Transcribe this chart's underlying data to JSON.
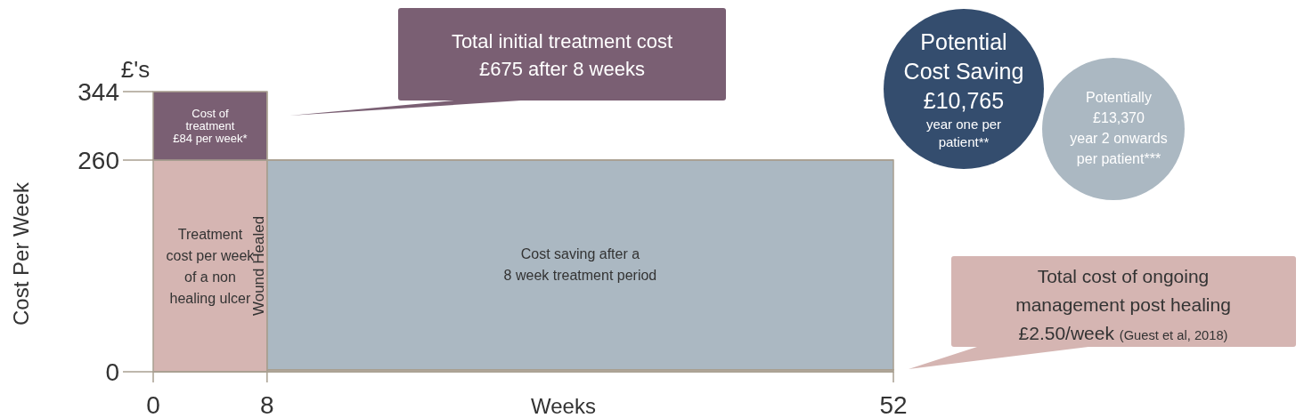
{
  "chart_data": {
    "type": "area",
    "stacked": true,
    "x": [
      0,
      8,
      52
    ],
    "xlim": [
      0,
      52
    ],
    "xticks": [
      0,
      8,
      52
    ],
    "ylim": [
      0,
      344
    ],
    "yticks": [
      0,
      260,
      344
    ],
    "xlabel": "Weeks",
    "ylabel": "Cost Per Week",
    "grid": false,
    "series": [
      {
        "color": "#e3cfcd",
        "values": [
          0,
          2.5,
          2.5
        ]
      },
      {
        "name": "Treatment\ncost per week\nof a non\nhealing ulcer",
        "color": "#d5b5b2",
        "values": [
          260,
          0,
          0
        ]
      },
      {
        "name": "Cost saving after a\n8 week treatment period",
        "color": "#abb8c2",
        "values": [
          0,
          257.5,
          257.5
        ]
      },
      {
        "name": "Cost of\ntreatment\n£84 per week*",
        "color": "#7a5f73",
        "values": [
          84,
          0,
          0
        ]
      }
    ],
    "ref_lines": [
      {
        "axis": "x",
        "value": 8,
        "label": "Wound Healed"
      }
    ],
    "annotations": [
      "£'s",
      "Total initial treatment cost\n£675 after 8 weeks",
      "Potential\nCost Saving\n£10,765\nyear one per\npatient**",
      "Potentially\n£13,370\nyear 2 onwards\nper patient***",
      "Total cost of ongoing\nmanagement post healing\n£2.50/week (Guest et al, 2018)"
    ]
  }
}
